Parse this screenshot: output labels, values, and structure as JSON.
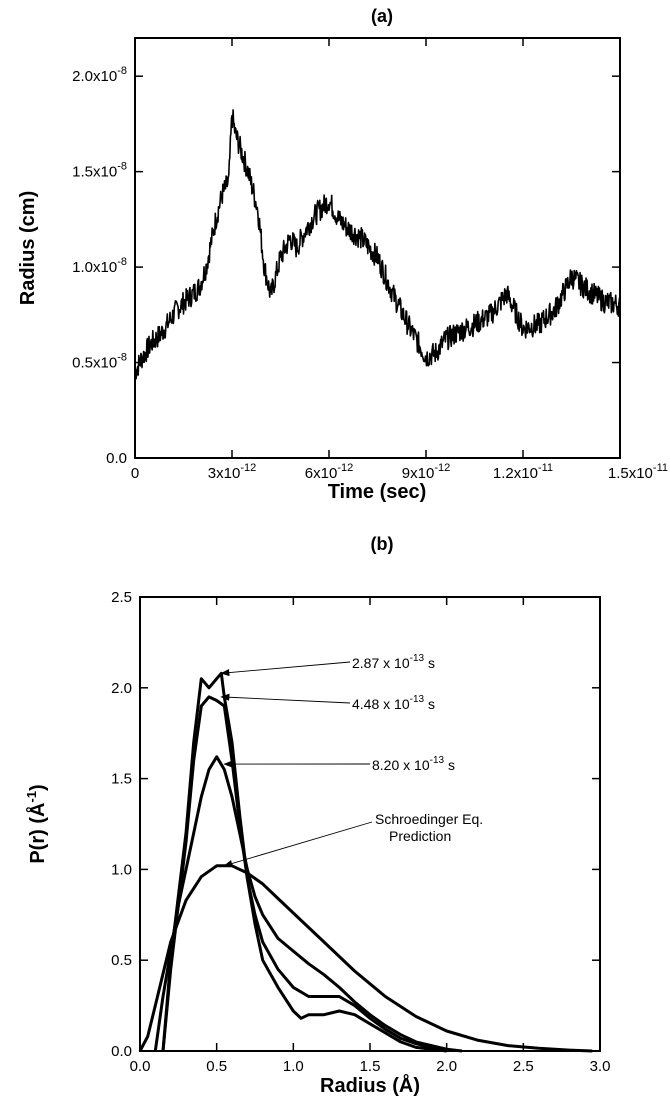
{
  "chart_data": [
    {
      "panel": "(a)",
      "type": "line",
      "title": "",
      "xlabel": "Time (sec)",
      "ylabel": "Radius (cm)",
      "xlim": [
        0,
        1.5e-11
      ],
      "ylim": [
        0,
        2.2e-08
      ],
      "xticks": [
        {
          "value": 0,
          "mant": "0",
          "exp": ""
        },
        {
          "value": 3e-12,
          "mant": "3x10",
          "exp": "-12"
        },
        {
          "value": 6e-12,
          "mant": "6x10",
          "exp": "-12"
        },
        {
          "value": 9e-12,
          "mant": "9x10",
          "exp": "-12"
        },
        {
          "value": 1.2e-11,
          "mant": "1.2x10",
          "exp": "-11"
        },
        {
          "value": 1.5e-11,
          "mant": "1.5x10",
          "exp": "-11"
        }
      ],
      "yticks": [
        {
          "value": 0,
          "mant": "0.0",
          "exp": ""
        },
        {
          "value": 5e-09,
          "mant": "0.5x10",
          "exp": "-8"
        },
        {
          "value": 1e-08,
          "mant": "1.0x10",
          "exp": "-8"
        },
        {
          "value": 1.5e-08,
          "mant": "1.5x10",
          "exp": "-8"
        },
        {
          "value": 2e-08,
          "mant": "2.0x10",
          "exp": "-8"
        }
      ],
      "grid": false,
      "series": [
        {
          "color": "#000000",
          "x": [
            0,
            2e-13,
            5e-13,
            8e-13,
            1e-12,
            1.3e-12,
            1.6e-12,
            1.8e-12,
            2e-12,
            2.2e-12,
            2.5e-12,
            2.7e-12,
            2.9e-12,
            3e-12,
            3.1e-12,
            3.3e-12,
            3.5e-12,
            3.8e-12,
            4e-12,
            4.2e-12,
            4.5e-12,
            4.8e-12,
            5e-12,
            5.3e-12,
            5.6e-12,
            6e-12,
            6.3e-12,
            6.6e-12,
            7e-12,
            7.5e-12,
            8e-12,
            8.5e-12,
            9e-12,
            9.3e-12,
            9.6e-12,
            1e-11,
            1.05e-11,
            1.1e-11,
            1.15e-11,
            1.2e-11,
            1.25e-11,
            1.3e-11,
            1.35e-11,
            1.4e-11,
            1.45e-11,
            1.5e-11
          ],
          "y": [
            4.5e-09,
            5.2e-09,
            6e-09,
            6.5e-09,
            7e-09,
            7.8e-09,
            8.3e-09,
            8.6e-09,
            9e-09,
            1e-08,
            1.25e-08,
            1.38e-08,
            1.45e-08,
            1.8e-08,
            1.7e-08,
            1.6e-08,
            1.5e-08,
            1.3e-08,
            1e-08,
            8.5e-09,
            1.05e-08,
            1.15e-08,
            1.1e-08,
            1.2e-08,
            1.28e-08,
            1.35e-08,
            1.25e-08,
            1.2e-08,
            1.15e-08,
            1.05e-08,
            8.5e-09,
            6.8e-09,
            5.3e-09,
            5.5e-09,
            6.2e-09,
            6.6e-09,
            7e-09,
            7.5e-09,
            8.6e-09,
            6.8e-09,
            7e-09,
            7.8e-09,
            9.5e-09,
            8.8e-09,
            8.2e-09,
            8e-09
          ],
          "band": 1.2e-09
        }
      ]
    },
    {
      "panel": "(b)",
      "type": "line",
      "title": "",
      "xlabel": "Radius (Å)",
      "ylabel_main": "P(r)  (Å",
      "ylabel_sup": "-1",
      "ylabel_close": ")",
      "xlim": [
        0,
        3.0
      ],
      "ylim": [
        0,
        2.5
      ],
      "xticks": [
        {
          "value": 0,
          "label": "0.0"
        },
        {
          "value": 0.5,
          "label": "0.5"
        },
        {
          "value": 1.0,
          "label": "1.0"
        },
        {
          "value": 1.5,
          "label": "1.5"
        },
        {
          "value": 2.0,
          "label": "2.0"
        },
        {
          "value": 2.5,
          "label": "2.5"
        },
        {
          "value": 3.0,
          "label": "3.0"
        }
      ],
      "yticks": [
        {
          "value": 0,
          "label": "0.0"
        },
        {
          "value": 0.5,
          "label": "0.5"
        },
        {
          "value": 1.0,
          "label": "1.0"
        },
        {
          "value": 1.5,
          "label": "1.5"
        },
        {
          "value": 2.0,
          "label": "2.0"
        },
        {
          "value": 2.5,
          "label": "2.5"
        }
      ],
      "grid": false,
      "series": [
        {
          "annotation": {
            "mant": "2.87 x 10",
            "exp": "-13",
            "unit": " s",
            "point": [
              0.53,
              2.08
            ]
          },
          "x": [
            0.15,
            0.2,
            0.25,
            0.3,
            0.35,
            0.4,
            0.45,
            0.5,
            0.53,
            0.55,
            0.6,
            0.65,
            0.7,
            0.75,
            0.8,
            0.9,
            1.0,
            1.05,
            1.1,
            1.2,
            1.3,
            1.4,
            1.5,
            1.6,
            1.7,
            1.8,
            2.0
          ],
          "y": [
            0.0,
            0.5,
            0.85,
            1.2,
            1.7,
            2.05,
            2.0,
            2.05,
            2.08,
            1.95,
            1.7,
            1.3,
            0.95,
            0.7,
            0.5,
            0.35,
            0.22,
            0.18,
            0.2,
            0.2,
            0.22,
            0.2,
            0.15,
            0.1,
            0.05,
            0.02,
            0.0
          ]
        },
        {
          "annotation": {
            "mant": "4.48 x 10",
            "exp": "-13",
            "unit": " s",
            "point": [
              0.53,
              1.95
            ]
          },
          "x": [
            0.15,
            0.2,
            0.25,
            0.3,
            0.35,
            0.4,
            0.45,
            0.5,
            0.55,
            0.6,
            0.65,
            0.7,
            0.75,
            0.8,
            0.9,
            1.0,
            1.1,
            1.2,
            1.3,
            1.4,
            1.5,
            1.6,
            1.7,
            1.8,
            1.9,
            2.0
          ],
          "y": [
            0.0,
            0.45,
            0.8,
            1.15,
            1.6,
            1.9,
            1.95,
            1.93,
            1.9,
            1.6,
            1.25,
            0.95,
            0.75,
            0.6,
            0.45,
            0.35,
            0.3,
            0.3,
            0.3,
            0.25,
            0.18,
            0.12,
            0.07,
            0.04,
            0.02,
            0.0
          ]
        },
        {
          "annotation": {
            "mant": "8.20 x 10",
            "exp": "-13",
            "unit": " s",
            "point": [
              0.55,
              1.58
            ]
          },
          "x": [
            0.1,
            0.15,
            0.2,
            0.25,
            0.3,
            0.35,
            0.4,
            0.45,
            0.5,
            0.55,
            0.6,
            0.65,
            0.7,
            0.75,
            0.8,
            0.9,
            1.0,
            1.1,
            1.2,
            1.3,
            1.4,
            1.5,
            1.6,
            1.7,
            1.8,
            1.9,
            2.0,
            2.1
          ],
          "y": [
            0.0,
            0.3,
            0.55,
            0.8,
            1.0,
            1.2,
            1.4,
            1.55,
            1.62,
            1.55,
            1.4,
            1.2,
            1.0,
            0.85,
            0.75,
            0.62,
            0.55,
            0.48,
            0.42,
            0.35,
            0.27,
            0.2,
            0.14,
            0.09,
            0.05,
            0.03,
            0.01,
            0.0
          ]
        },
        {
          "annotation": {
            "line1": "Schroedinger Eq.",
            "line2": "Prediction",
            "point": [
              0.55,
              1.02
            ]
          },
          "x": [
            0.0,
            0.05,
            0.1,
            0.2,
            0.3,
            0.4,
            0.5,
            0.6,
            0.7,
            0.8,
            0.9,
            1.0,
            1.2,
            1.4,
            1.6,
            1.8,
            2.0,
            2.2,
            2.4,
            2.6,
            2.8,
            2.95
          ],
          "y": [
            0.0,
            0.08,
            0.25,
            0.6,
            0.83,
            0.96,
            1.02,
            1.02,
            0.98,
            0.92,
            0.84,
            0.76,
            0.6,
            0.44,
            0.3,
            0.19,
            0.11,
            0.06,
            0.03,
            0.015,
            0.005,
            0.0
          ]
        }
      ]
    }
  ]
}
